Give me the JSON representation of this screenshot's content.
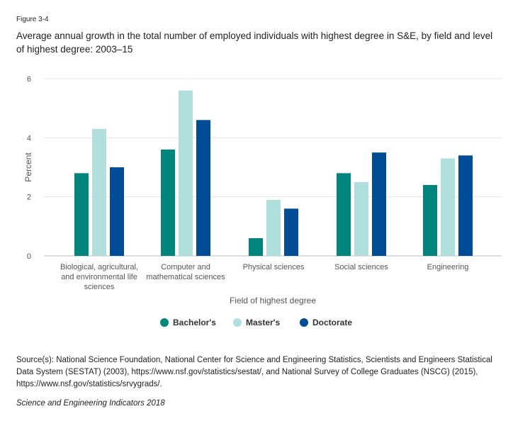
{
  "figure_label": "Figure 3-4",
  "source": "Source(s): National Science Foundation, National Center for Science and Engineering Statistics, Scientists and Engineers Statistical Data System (SESTAT) (2003), https://www.nsf.gov/statistics/sestat/, and National Survey of College Graduates (NSCG) (2015), https://www.nsf.gov/statistics/srvygrads/.",
  "publication": "Science and Engineering Indicators 2018",
  "chart_data": {
    "type": "bar",
    "title": "Average annual growth in the total number of employed individuals with highest degree in S&E, by field and level of highest degree: 2003–15",
    "xlabel": "Field of highest degree",
    "ylabel": "Percent",
    "ylim": [
      0,
      6
    ],
    "yticks": [
      0,
      2,
      4,
      6
    ],
    "grid": true,
    "legend_position": "bottom",
    "categories": [
      [
        "Biological, agricultural,",
        "and environmental life",
        "sciences"
      ],
      [
        "Computer and",
        "mathematical sciences"
      ],
      [
        "Physical sciences"
      ],
      [
        "Social sciences"
      ],
      [
        "Engineering"
      ]
    ],
    "series": [
      {
        "name": "Bachelor's",
        "color": "#00857d",
        "values": [
          2.8,
          3.6,
          0.6,
          2.8,
          2.4
        ]
      },
      {
        "name": "Master's",
        "color": "#b1dfdb",
        "values": [
          4.3,
          5.6,
          1.9,
          2.5,
          3.3
        ]
      },
      {
        "name": "Doctorate",
        "color": "#004c97",
        "values": [
          3.0,
          4.6,
          1.6,
          3.5,
          3.4
        ]
      }
    ]
  }
}
